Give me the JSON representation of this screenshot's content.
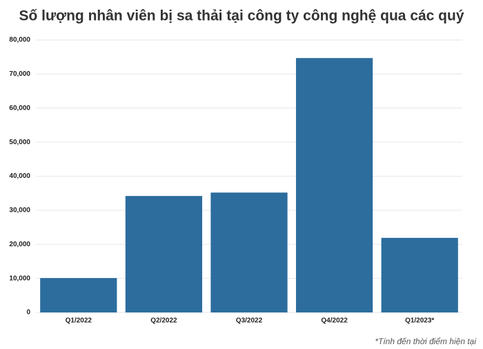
{
  "chart_data": {
    "type": "bar",
    "title": "Số lượng nhân viên bị sa thải tại công ty công nghệ qua các quý",
    "categories": [
      "Q1/2022",
      "Q2/2022",
      "Q3/2022",
      "Q4/2022",
      "Q1/2023*"
    ],
    "values": [
      10100,
      34200,
      35200,
      74700,
      21900
    ],
    "color": "#2c6d9e",
    "ylim": [
      0,
      80000
    ],
    "yticks": [
      0,
      {
        "value": 10000,
        "label": "10,000"
      },
      {
        "value": 20000,
        "label": "20,000"
      },
      {
        "value": 30000,
        "label": "30,000"
      },
      {
        "value": 40000,
        "label": "40,000"
      },
      {
        "value": 50000,
        "label": "50,000"
      },
      {
        "value": 60000,
        "label": "60,000"
      },
      {
        "value": 70000,
        "label": "70,000"
      },
      {
        "value": 80000,
        "label": "80,000"
      }
    ],
    "grid": true,
    "note": "*Tính đến thời điểm hiện tại"
  }
}
